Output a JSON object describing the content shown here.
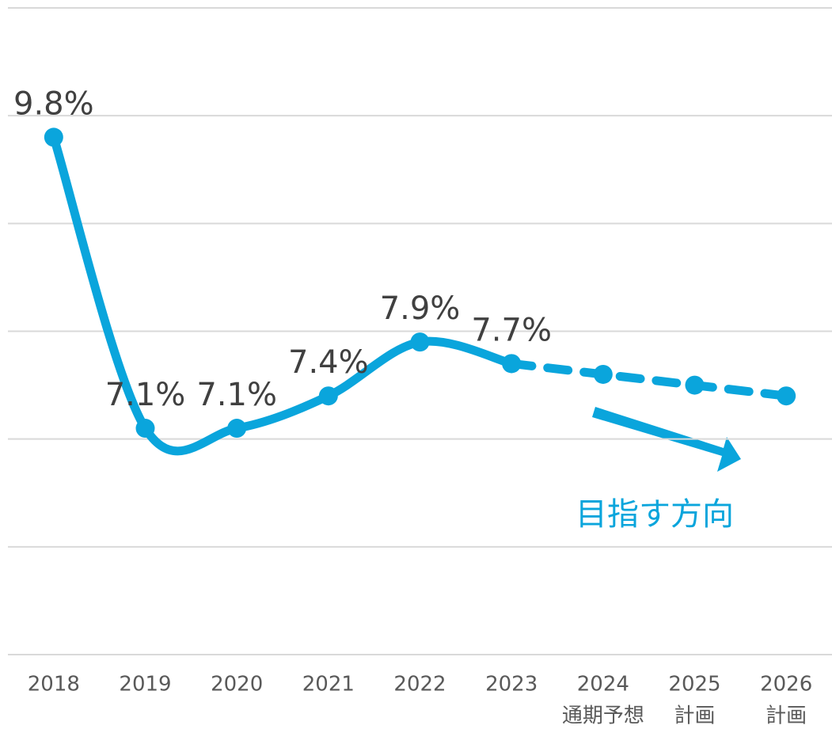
{
  "chart_data": {
    "type": "line",
    "categories": [
      "2018",
      "2019",
      "2020",
      "2021",
      "2022",
      "2023",
      "2024",
      "2025",
      "2026"
    ],
    "category_notes": [
      null,
      null,
      null,
      null,
      null,
      null,
      "通期予想",
      "計画",
      "計画"
    ],
    "series": [
      {
        "color": "#0aa5dc",
        "style": "solid",
        "values": [
          9.8,
          7.1,
          7.1,
          7.4,
          7.9,
          7.7,
          null,
          null,
          null
        ],
        "value_labels": [
          "9.8%",
          "7.1%",
          "7.1%",
          "7.4%",
          "7.9%",
          "7.7%",
          null,
          null,
          null
        ]
      },
      {
        "color": "#0aa5dc",
        "style": "dashed",
        "values": [
          null,
          null,
          null,
          null,
          null,
          7.7,
          7.6,
          7.5,
          7.4
        ]
      }
    ],
    "ylim": [
      5,
      11
    ],
    "yticks": [
      5,
      6,
      7,
      8,
      9,
      10,
      11
    ],
    "grid": true,
    "annotation": "目指す方向"
  }
}
